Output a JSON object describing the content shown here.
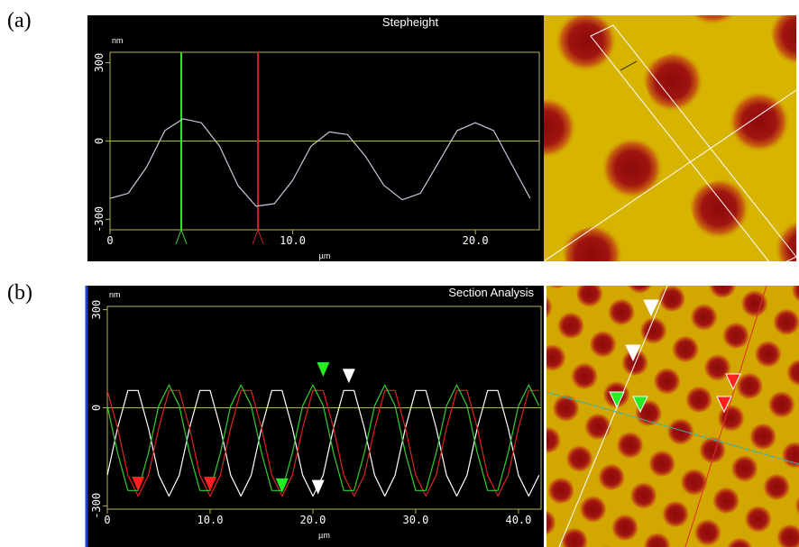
{
  "figure_labels": [
    "(a)",
    "(b)"
  ],
  "chart_data": [
    {
      "type": "line",
      "title": "Stepheight",
      "y_label": "nm",
      "x_label": "µm",
      "xlim": [
        0,
        23.5
      ],
      "ylim": [
        -340,
        340
      ],
      "xticks": [
        0,
        {
          "value": 10,
          "label": "10.0"
        },
        {
          "value": 20,
          "label": "20.0"
        }
      ],
      "yticks": [
        300,
        0,
        -300
      ],
      "frame_color": "#b5b55a",
      "x": [
        0,
        1,
        2,
        3,
        4,
        5,
        6,
        7,
        8,
        9,
        10,
        11,
        12,
        13,
        14,
        15,
        16,
        17,
        18,
        19,
        20,
        21,
        22,
        23
      ],
      "series": [
        {
          "color": "#c8c8dc",
          "values": [
            -220,
            -200,
            -100,
            40,
            85,
            70,
            -20,
            -170,
            -250,
            -240,
            -150,
            -20,
            35,
            25,
            -60,
            -170,
            -225,
            -200,
            -80,
            40,
            70,
            40,
            -90,
            -220
          ]
        }
      ],
      "cursors": [
        {
          "x": 3.9,
          "color": "#33dd33"
        },
        {
          "x": 8.1,
          "color": "#cc2222"
        }
      ]
    },
    {
      "type": "line",
      "title": "Section Analysis",
      "y_label": "nm",
      "x_label": "µm",
      "xlim": [
        0,
        42.2
      ],
      "ylim": [
        -310,
        310
      ],
      "xticks": [
        0,
        {
          "value": 10,
          "label": "10.0"
        },
        {
          "value": 20,
          "label": "20.0"
        },
        {
          "value": 30,
          "label": "30.0"
        },
        {
          "value": 40,
          "label": "40.0"
        }
      ],
      "yticks": [
        300,
        0,
        -300
      ],
      "frame_color": "#b5b55a",
      "x": [
        0,
        1,
        2,
        3,
        4,
        5,
        6,
        7,
        8,
        9,
        10,
        11,
        12,
        13,
        14,
        15,
        16,
        17,
        18,
        19,
        20,
        21,
        22,
        23,
        24,
        25,
        26,
        27,
        28,
        29,
        30,
        31,
        32,
        33,
        34,
        35,
        36,
        37,
        38,
        39,
        40,
        41,
        42
      ],
      "series": [
        {
          "color": "#ffffff",
          "values": [
            -206,
            -62,
            53,
            53,
            -62,
            -206,
            -270,
            -206,
            -62,
            53,
            53,
            -62,
            -206,
            -270,
            -206,
            -62,
            53,
            53,
            -62,
            -206,
            -270,
            -206,
            -62,
            53,
            53,
            -62,
            -206,
            -270,
            -206,
            -62,
            53,
            53,
            -62,
            -206,
            -270,
            -206,
            -62,
            53,
            53,
            -62,
            -206,
            -270,
            -206
          ]
        },
        {
          "color": "#dd2222",
          "values": [
            53,
            -62,
            -206,
            -270,
            -206,
            -62,
            53,
            53,
            -62,
            -206,
            -270,
            -206,
            -62,
            53,
            53,
            -62,
            -206,
            -270,
            -206,
            -62,
            53,
            53,
            -62,
            -206,
            -270,
            -206,
            -62,
            53,
            53,
            -62,
            -206,
            -270,
            -206,
            -62,
            53,
            53,
            -62,
            -206,
            -270,
            -206,
            -62,
            53,
            53
          ]
        },
        {
          "color": "#33cc33",
          "values": [
            6,
            -138,
            -253,
            -253,
            -138,
            6,
            70,
            6,
            -138,
            -253,
            -253,
            -138,
            6,
            70,
            6,
            -138,
            -253,
            -253,
            -138,
            6,
            70,
            6,
            -138,
            -253,
            -253,
            -138,
            6,
            70,
            6,
            -138,
            -253,
            -253,
            -138,
            6,
            70,
            6,
            -138,
            -253,
            -253,
            -138,
            6,
            70,
            6
          ]
        }
      ],
      "markers": [
        {
          "x": 3,
          "y": -255,
          "color": "#ff2020"
        },
        {
          "x": 10,
          "y": -255,
          "color": "#ff2020"
        },
        {
          "x": 17,
          "y": -260,
          "color": "#22ee22"
        },
        {
          "x": 21,
          "y": 95,
          "color": "#22ee22"
        },
        {
          "x": 20.5,
          "y": -265,
          "color": "#ffffff"
        },
        {
          "x": 23.5,
          "y": 75,
          "color": "#ffffff"
        }
      ]
    }
  ]
}
